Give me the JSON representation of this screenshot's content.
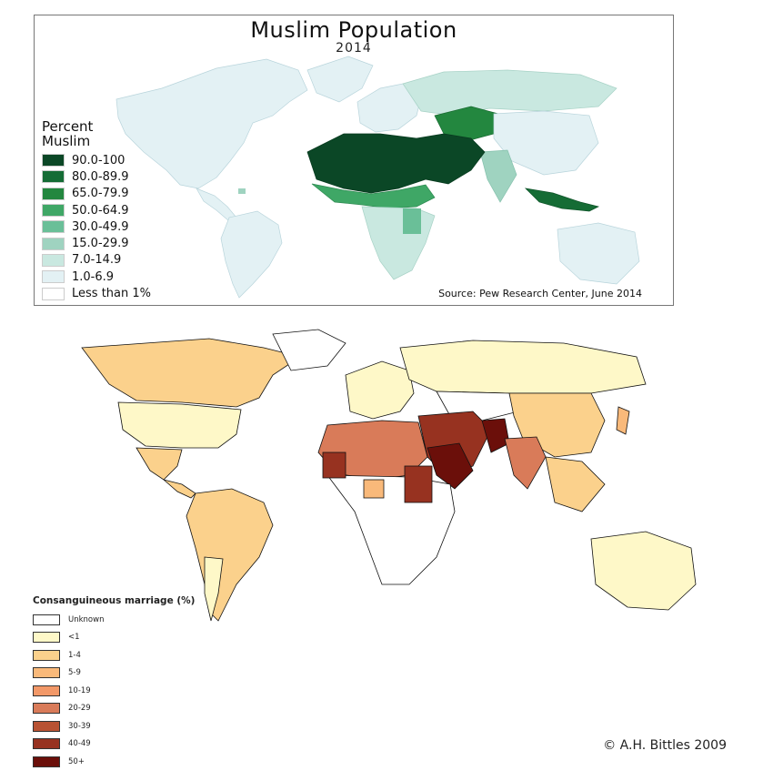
{
  "top_map": {
    "title": "Muslim Population",
    "year": "2014",
    "legend_title_line1": "Percent",
    "legend_title_line2": "Muslim",
    "legend": [
      {
        "label": "90.0-100",
        "color": "#0b4726"
      },
      {
        "label": "80.0-89.9",
        "color": "#156c35"
      },
      {
        "label": "65.0-79.9",
        "color": "#23873f"
      },
      {
        "label": "50.0-64.9",
        "color": "#3fa766"
      },
      {
        "label": "30.0-49.9",
        "color": "#6abf98"
      },
      {
        "label": "15.0-29.9",
        "color": "#9fd3c0"
      },
      {
        "label": "7.0-14.9",
        "color": "#c9e8e0"
      },
      {
        "label": "1.0-6.9",
        "color": "#e3f1f4"
      },
      {
        "label": "Less than 1%",
        "color": "#ffffff"
      }
    ],
    "source": "Source: Pew Research Center, June 2014"
  },
  "bottom_map": {
    "legend_title": "Consanguineous marriage (%)",
    "legend": [
      {
        "label": "Unknown",
        "color": "#ffffff"
      },
      {
        "label": "<1",
        "color": "#fef8c8"
      },
      {
        "label": "1-4",
        "color": "#fbd18c"
      },
      {
        "label": "5-9",
        "color": "#f9b97a"
      },
      {
        "label": "10-19",
        "color": "#f29868"
      },
      {
        "label": "20-29",
        "color": "#d97b59"
      },
      {
        "label": "30-39",
        "color": "#b85233"
      },
      {
        "label": "40-49",
        "color": "#973220"
      },
      {
        "label": "50+",
        "color": "#6b0f0a"
      }
    ],
    "copyright": "© A.H. Bittles 2009"
  }
}
